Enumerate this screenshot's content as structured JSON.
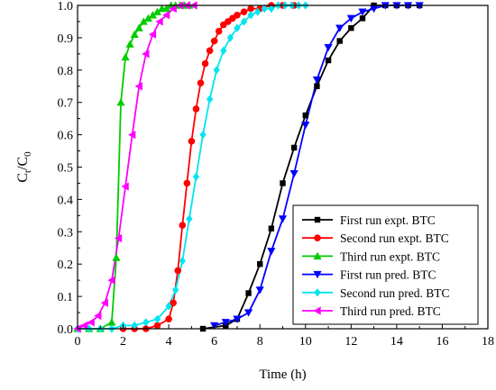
{
  "chart_data": {
    "type": "line",
    "xlabel": "Time (h)",
    "ylabel": {
      "main": "C",
      "sub1": "t",
      "mid": "/C",
      "sub2": "0"
    },
    "xlim": [
      0,
      18
    ],
    "ylim": [
      0,
      1.0
    ],
    "xticks": [
      "0",
      "2",
      "4",
      "6",
      "8",
      "10",
      "12",
      "14",
      "16",
      "18"
    ],
    "yticks": [
      "0.0",
      "0.1",
      "0.2",
      "0.3",
      "0.4",
      "0.5",
      "0.6",
      "0.7",
      "0.8",
      "0.9",
      "1.0"
    ],
    "grid": false,
    "legend_position": "bottom-right",
    "series": [
      {
        "name": "First run expt. BTC",
        "color": "#000000",
        "marker": "square",
        "x": [
          5.5,
          6.5,
          7.0,
          7.5,
          8.0,
          8.5,
          9.0,
          9.5,
          10.0,
          10.5,
          11.0,
          11.5,
          12.0,
          12.5,
          13.0,
          13.5,
          14.0,
          14.5,
          15.0
        ],
        "y": [
          0.0,
          0.01,
          0.03,
          0.11,
          0.2,
          0.31,
          0.45,
          0.56,
          0.66,
          0.75,
          0.83,
          0.89,
          0.93,
          0.96,
          1.0,
          1.0,
          1.0,
          1.0,
          1.0
        ]
      },
      {
        "name": "Second run expt. BTC",
        "color": "#ff0000",
        "marker": "circle",
        "x": [
          2.0,
          2.5,
          3.0,
          3.5,
          4.0,
          4.2,
          4.4,
          4.6,
          4.8,
          5.0,
          5.2,
          5.4,
          5.6,
          5.8,
          6.0,
          6.2,
          6.4,
          6.6,
          6.8,
          7.0,
          7.3,
          7.6,
          8.0,
          8.5,
          9.0,
          9.5
        ],
        "y": [
          0.0,
          0.0,
          0.0,
          0.01,
          0.03,
          0.08,
          0.18,
          0.32,
          0.45,
          0.58,
          0.68,
          0.76,
          0.82,
          0.86,
          0.89,
          0.92,
          0.94,
          0.95,
          0.96,
          0.97,
          0.98,
          0.99,
          0.99,
          1.0,
          1.0,
          1.0
        ]
      },
      {
        "name": "Third run expt. BTC",
        "color": "#00cc00",
        "marker": "triangle-up",
        "x": [
          0.0,
          0.5,
          1.0,
          1.5,
          1.7,
          1.9,
          2.1,
          2.3,
          2.5,
          2.7,
          2.9,
          3.1,
          3.3,
          3.5,
          3.7,
          3.9,
          4.1,
          4.3,
          4.5,
          4.7,
          4.9
        ],
        "y": [
          0.0,
          0.0,
          0.0,
          0.02,
          0.22,
          0.7,
          0.84,
          0.88,
          0.91,
          0.93,
          0.95,
          0.96,
          0.97,
          0.98,
          0.99,
          0.99,
          1.0,
          1.0,
          1.0,
          1.0,
          1.0
        ]
      },
      {
        "name": "First run pred. BTC",
        "color": "#0000ff",
        "marker": "triangle-down",
        "x": [
          6.0,
          6.5,
          7.0,
          7.5,
          8.0,
          8.5,
          9.0,
          9.5,
          10.0,
          10.5,
          11.0,
          11.5,
          12.0,
          12.5,
          13.0,
          13.5,
          14.0,
          14.5,
          15.0
        ],
        "y": [
          0.01,
          0.02,
          0.03,
          0.05,
          0.12,
          0.24,
          0.34,
          0.48,
          0.63,
          0.77,
          0.87,
          0.93,
          0.96,
          0.98,
          0.99,
          1.0,
          1.0,
          1.0,
          1.0
        ]
      },
      {
        "name": "Second run pred. BTC",
        "color": "#00e5ee",
        "marker": "diamond",
        "x": [
          0.0,
          0.5,
          1.0,
          1.5,
          2.0,
          2.5,
          3.0,
          3.5,
          4.0,
          4.3,
          4.6,
          4.9,
          5.2,
          5.5,
          5.8,
          6.1,
          6.4,
          6.7,
          7.0,
          7.3,
          7.6,
          7.9,
          8.2,
          8.5,
          8.8,
          9.1,
          9.4,
          9.7,
          10.0
        ],
        "y": [
          0.0,
          0.0,
          0.0,
          0.0,
          0.01,
          0.01,
          0.02,
          0.03,
          0.07,
          0.12,
          0.21,
          0.34,
          0.47,
          0.6,
          0.71,
          0.8,
          0.86,
          0.9,
          0.93,
          0.95,
          0.97,
          0.98,
          0.99,
          0.99,
          1.0,
          1.0,
          1.0,
          1.0,
          1.0
        ]
      },
      {
        "name": "Third run pred. BTC",
        "color": "#ff00ff",
        "marker": "triangle-left",
        "x": [
          0.0,
          0.3,
          0.6,
          0.9,
          1.2,
          1.5,
          1.8,
          2.1,
          2.4,
          2.7,
          3.0,
          3.3,
          3.6,
          3.9,
          4.2,
          4.5,
          4.8,
          5.1
        ],
        "y": [
          0.0,
          0.01,
          0.02,
          0.04,
          0.08,
          0.15,
          0.28,
          0.44,
          0.6,
          0.75,
          0.85,
          0.91,
          0.95,
          0.97,
          0.99,
          1.0,
          1.0,
          1.0
        ]
      }
    ]
  }
}
